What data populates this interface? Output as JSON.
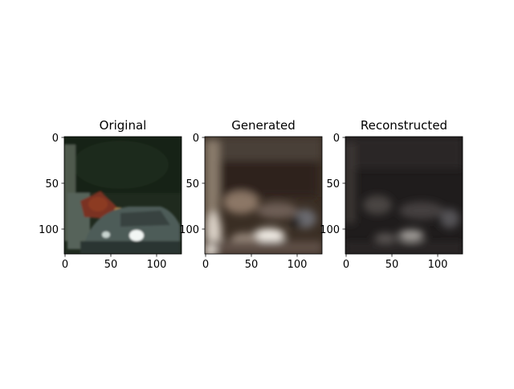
{
  "panels": [
    {
      "title": "Original",
      "x_ticks": [
        "0",
        "50",
        "100"
      ],
      "y_ticks": [
        "0",
        "50",
        "100"
      ],
      "image_description": "Dark green outdoor scene: a person in a red top on the left and a small dark car with bright headlights in the lower middle"
    },
    {
      "title": "Generated",
      "x_ticks": [
        "0",
        "50",
        "100"
      ],
      "y_ticks": [
        "0",
        "50",
        "100"
      ],
      "image_description": "Blurry brown reconstruction with light blobs around the car area"
    },
    {
      "title": "Reconstructed",
      "x_ticks": [
        "0",
        "50",
        "100"
      ],
      "y_ticks": [
        "0",
        "50",
        "100"
      ],
      "image_description": "Very dark blurry reconstruction with faint grey car shape"
    }
  ]
}
